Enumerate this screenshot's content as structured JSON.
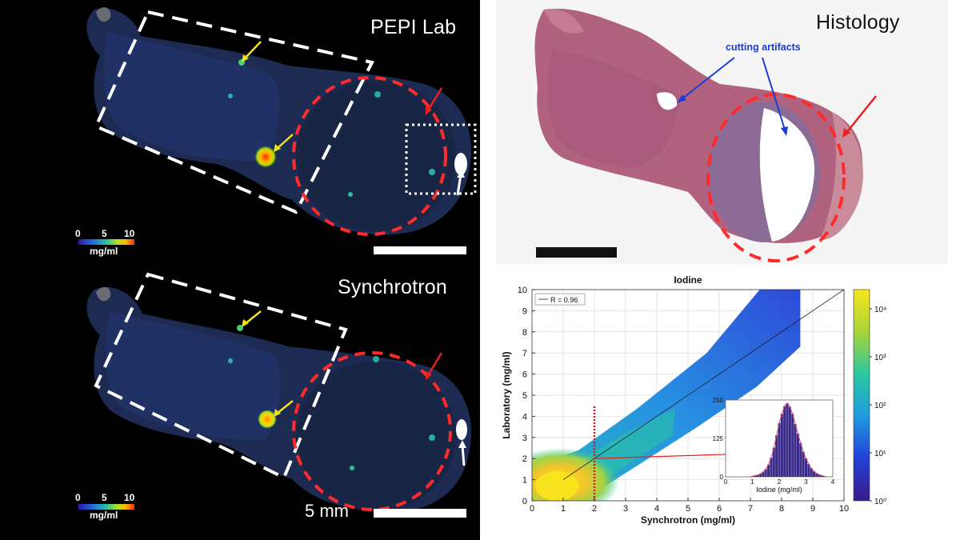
{
  "panels": {
    "pepi": {
      "title": "PEPI Lab",
      "colorbar": {
        "ticks": [
          "0",
          "5",
          "10"
        ],
        "unit": "mg/ml"
      }
    },
    "synchrotron": {
      "title": "Synchrotron",
      "colorbar": {
        "ticks": [
          "0",
          "5",
          "10"
        ],
        "unit": "mg/ml"
      },
      "scalebar_label": "5 mm"
    },
    "histology": {
      "title": "Histology",
      "annotation": "cutting artifacts"
    }
  },
  "colors": {
    "dashed_region": "#ff2a2a",
    "dashed_box": "#ffffff",
    "arrow_yellow": "#f2e01a",
    "arrow_red": "#e82020",
    "arrow_blue": "#1c3cd8"
  },
  "chart_data": {
    "type": "heatmap",
    "title": "Iodine",
    "xlabel": "Synchrotron (mg/ml)",
    "ylabel": "Laboratory (mg/ml)",
    "xlim": [
      0,
      10
    ],
    "ylim": [
      0,
      10
    ],
    "xticks": [
      "0",
      "1",
      "2",
      "3",
      "4",
      "5",
      "6",
      "7",
      "8",
      "9",
      "10"
    ],
    "yticks": [
      "0",
      "1",
      "2",
      "3",
      "4",
      "5",
      "6",
      "7",
      "8",
      "9",
      "10"
    ],
    "legend": "R = 0.96",
    "threshold_x": 2,
    "fit_line": [
      [
        1,
        1
      ],
      [
        10,
        10
      ]
    ],
    "colorbar": {
      "scale": "log",
      "ticks": [
        "10⁰",
        "10¹",
        "10²",
        "10³",
        "10⁴"
      ]
    },
    "inset": {
      "type": "histogram",
      "xlabel": "Iodine (mg/ml)",
      "xticks": [
        "0",
        "1",
        "2",
        "3",
        "4"
      ],
      "yticks": [
        "0",
        "125",
        "250"
      ],
      "bins": [
        [
          1.0,
          2
        ],
        [
          1.1,
          4
        ],
        [
          1.2,
          6
        ],
        [
          1.3,
          10
        ],
        [
          1.4,
          16
        ],
        [
          1.5,
          25
        ],
        [
          1.6,
          40
        ],
        [
          1.7,
          62
        ],
        [
          1.8,
          95
        ],
        [
          1.9,
          135
        ],
        [
          2.0,
          175
        ],
        [
          2.1,
          205
        ],
        [
          2.2,
          230
        ],
        [
          2.3,
          240
        ],
        [
          2.4,
          228
        ],
        [
          2.5,
          205
        ],
        [
          2.6,
          172
        ],
        [
          2.7,
          140
        ],
        [
          2.8,
          110
        ],
        [
          2.9,
          82
        ],
        [
          3.0,
          60
        ],
        [
          3.1,
          42
        ],
        [
          3.2,
          28
        ],
        [
          3.3,
          18
        ],
        [
          3.4,
          11
        ],
        [
          3.5,
          7
        ],
        [
          3.6,
          4
        ],
        [
          3.7,
          2
        ]
      ]
    }
  }
}
